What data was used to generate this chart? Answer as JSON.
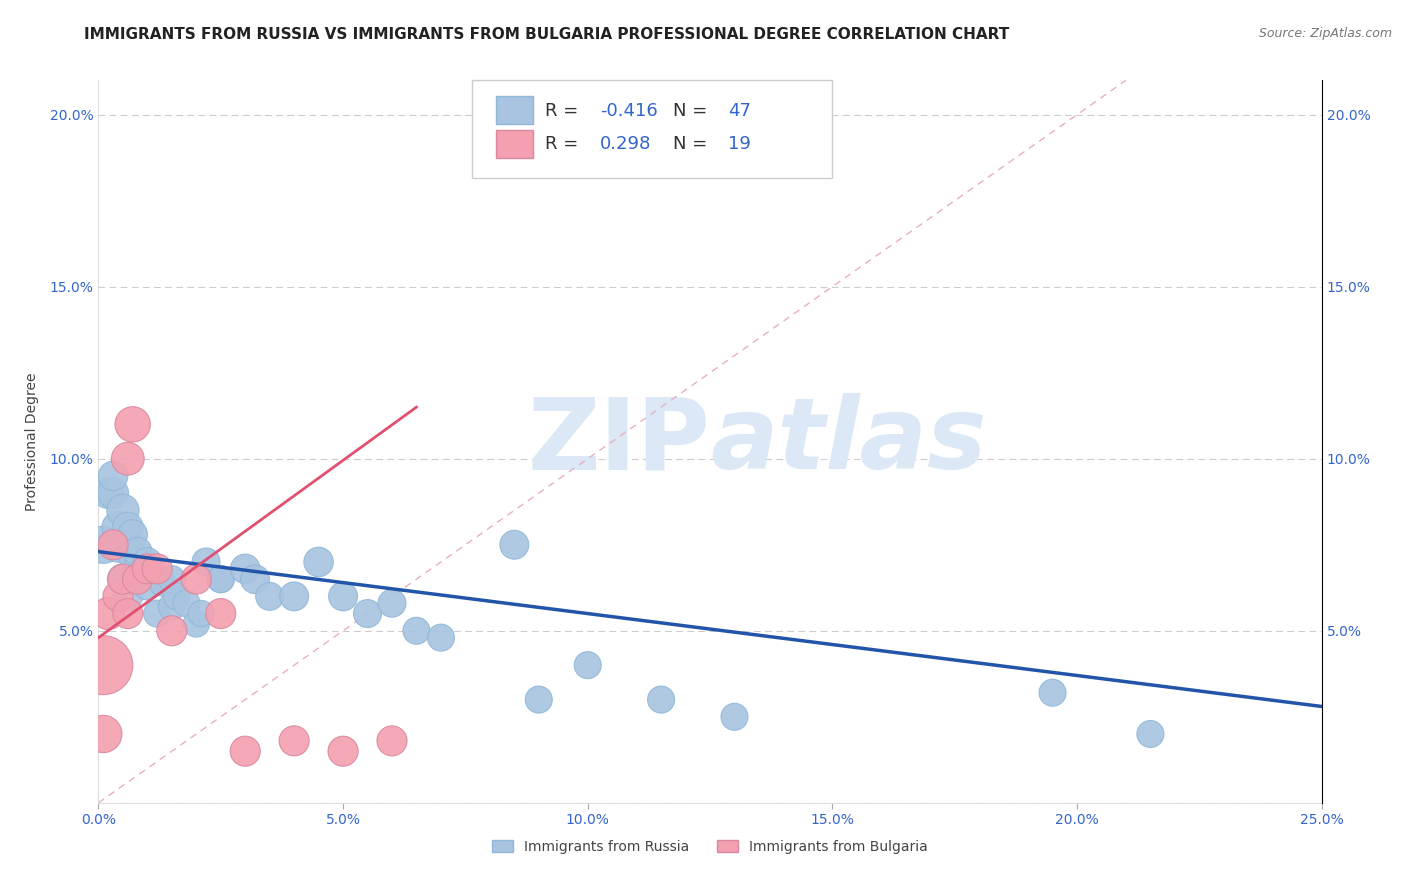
{
  "title": "IMMIGRANTS FROM RUSSIA VS IMMIGRANTS FROM BULGARIA PROFESSIONAL DEGREE CORRELATION CHART",
  "source_text": "Source: ZipAtlas.com",
  "ylabel": "Professional Degree",
  "xlim": [
    0.0,
    0.25
  ],
  "ylim": [
    0.0,
    0.21
  ],
  "xticks": [
    0.0,
    0.05,
    0.1,
    0.15,
    0.2,
    0.25
  ],
  "yticks": [
    0.0,
    0.05,
    0.1,
    0.15,
    0.2
  ],
  "xticklabels": [
    "0.0%",
    "5.0%",
    "10.0%",
    "15.0%",
    "20.0%",
    "25.0%"
  ],
  "yticklabels": [
    "",
    "5.0%",
    "10.0%",
    "15.0%",
    "20.0%"
  ],
  "right_yticklabels": [
    "",
    "5.0%",
    "10.0%",
    "15.0%",
    "20.0%"
  ],
  "legend_russia_label": "Immigrants from Russia",
  "legend_bulgaria_label": "Immigrants from Bulgaria",
  "russia_R": "-0.416",
  "russia_N": "47",
  "bulgaria_R": "0.298",
  "bulgaria_N": "19",
  "russia_color": "#a8c4e0",
  "russia_line_color": "#2255aa",
  "bulgaria_color": "#f4a0b0",
  "bulgaria_line_color": "#e05070",
  "ref_line_color": "#e8b0c0",
  "background_color": "#ffffff",
  "watermark_color": "#dce8f5",
  "title_fontsize": 11,
  "tick_fontsize": 10,
  "russia_scatter_x": [
    0.001,
    0.002,
    0.003,
    0.003,
    0.004,
    0.004,
    0.005,
    0.005,
    0.005,
    0.006,
    0.006,
    0.007,
    0.007,
    0.008,
    0.008,
    0.009,
    0.01,
    0.01,
    0.011,
    0.012,
    0.013,
    0.015,
    0.015,
    0.016,
    0.018,
    0.02,
    0.021,
    0.022,
    0.025,
    0.025,
    0.03,
    0.032,
    0.035,
    0.04,
    0.045,
    0.05,
    0.055,
    0.06,
    0.065,
    0.07,
    0.085,
    0.09,
    0.1,
    0.115,
    0.13,
    0.195,
    0.215
  ],
  "russia_scatter_y": [
    0.075,
    0.09,
    0.09,
    0.095,
    0.075,
    0.08,
    0.065,
    0.075,
    0.085,
    0.06,
    0.08,
    0.072,
    0.078,
    0.068,
    0.073,
    0.066,
    0.07,
    0.063,
    0.068,
    0.055,
    0.064,
    0.057,
    0.065,
    0.06,
    0.058,
    0.052,
    0.055,
    0.07,
    0.065,
    0.065,
    0.068,
    0.065,
    0.06,
    0.06,
    0.07,
    0.06,
    0.055,
    0.058,
    0.05,
    0.048,
    0.075,
    0.03,
    0.04,
    0.03,
    0.025,
    0.032,
    0.02
  ],
  "russia_scatter_size": [
    80,
    55,
    55,
    50,
    70,
    60,
    55,
    50,
    60,
    50,
    55,
    50,
    50,
    48,
    48,
    45,
    48,
    45,
    45,
    42,
    42,
    42,
    42,
    42,
    42,
    40,
    40,
    45,
    42,
    42,
    50,
    48,
    45,
    48,
    50,
    48,
    45,
    45,
    42,
    42,
    48,
    42,
    42,
    42,
    42,
    42,
    42
  ],
  "bulgaria_scatter_x": [
    0.001,
    0.001,
    0.002,
    0.003,
    0.004,
    0.005,
    0.006,
    0.006,
    0.007,
    0.008,
    0.01,
    0.012,
    0.015,
    0.02,
    0.025,
    0.03,
    0.04,
    0.05,
    0.06
  ],
  "bulgaria_scatter_y": [
    0.04,
    0.02,
    0.055,
    0.075,
    0.06,
    0.065,
    0.1,
    0.055,
    0.11,
    0.065,
    0.068,
    0.068,
    0.05,
    0.065,
    0.055,
    0.015,
    0.018,
    0.015,
    0.018
  ],
  "bulgaria_scatter_size": [
    200,
    80,
    60,
    52,
    52,
    52,
    62,
    52,
    72,
    52,
    52,
    52,
    52,
    52,
    52,
    52,
    52,
    52,
    52
  ],
  "russia_line_x": [
    0.0,
    0.25
  ],
  "russia_line_y": [
    0.073,
    0.028
  ],
  "bulgaria_line_x": [
    0.0,
    0.065
  ],
  "bulgaria_line_y": [
    0.048,
    0.115
  ],
  "diag_line_x": [
    0.0,
    0.21
  ],
  "diag_line_y": [
    0.0,
    0.21
  ]
}
